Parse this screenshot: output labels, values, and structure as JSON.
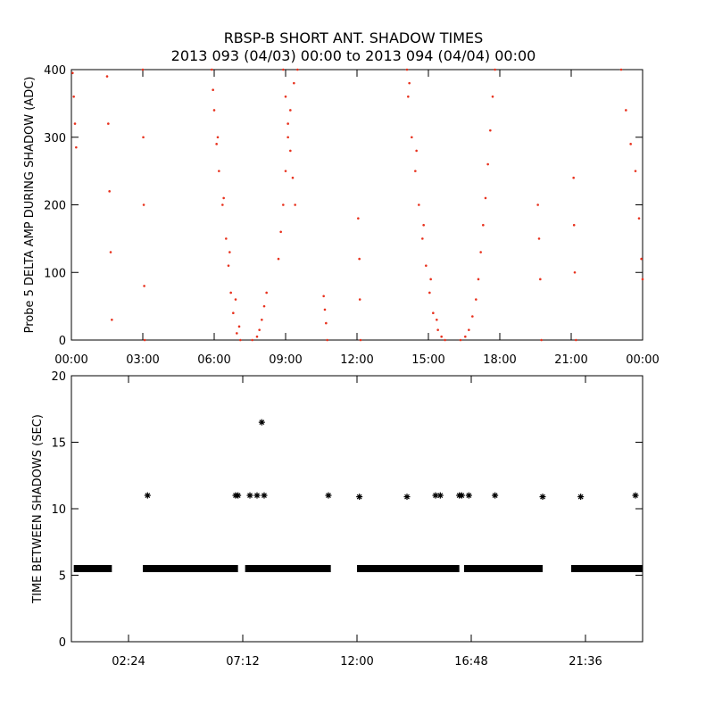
{
  "title": {
    "line1": "RBSP-B SHORT ANT. SHADOW TIMES",
    "line2": "2013 093 (04/03) 00:00 to 2013 094 (04/04) 00:00"
  },
  "chart_data": [
    {
      "type": "scatter",
      "ylabel": "Probe 5 DELTA AMP DURING SHADOW (ADC)",
      "xlabel": "",
      "xlim": [
        0,
        24
      ],
      "ylim": [
        0,
        400
      ],
      "x_ticks": [
        0,
        3,
        6,
        9,
        12,
        15,
        18,
        21,
        24
      ],
      "x_tick_labels": [
        "00:00",
        "03:00",
        "06:00",
        "09:00",
        "12:00",
        "15:00",
        "18:00",
        "21:00",
        "00:00"
      ],
      "y_ticks": [
        0,
        100,
        200,
        300,
        400
      ],
      "y_tick_labels": [
        "0",
        "100",
        "200",
        "300",
        "400"
      ],
      "color": "#e8321e",
      "grid": false,
      "series": [
        {
          "values": [
            [
              0.05,
              395
            ],
            [
              0.1,
              360
            ],
            [
              0.15,
              320
            ],
            [
              0.2,
              285
            ],
            [
              1.5,
              390
            ],
            [
              1.55,
              320
            ],
            [
              1.6,
              220
            ],
            [
              1.65,
              130
            ],
            [
              1.7,
              30
            ],
            [
              3.0,
              400
            ],
            [
              3.02,
              300
            ],
            [
              3.04,
              200
            ],
            [
              3.06,
              80
            ],
            [
              3.08,
              0
            ],
            [
              5.9,
              400
            ],
            [
              6.0,
              340
            ],
            [
              6.1,
              290
            ],
            [
              6.2,
              250
            ],
            [
              6.35,
              200
            ],
            [
              6.5,
              150
            ],
            [
              6.6,
              110
            ],
            [
              6.7,
              70
            ],
            [
              6.8,
              40
            ],
            [
              6.95,
              10
            ],
            [
              7.1,
              0
            ],
            [
              5.95,
              370
            ],
            [
              6.15,
              300
            ],
            [
              6.4,
              210
            ],
            [
              6.65,
              130
            ],
            [
              6.9,
              60
            ],
            [
              7.05,
              20
            ],
            [
              7.6,
              0
            ],
            [
              7.8,
              5
            ],
            [
              7.9,
              15
            ],
            [
              8.0,
              30
            ],
            [
              8.1,
              50
            ],
            [
              8.2,
              70
            ],
            [
              8.7,
              120
            ],
            [
              8.8,
              160
            ],
            [
              8.9,
              200
            ],
            [
              9.0,
              250
            ],
            [
              9.1,
              300
            ],
            [
              9.2,
              340
            ],
            [
              9.35,
              380
            ],
            [
              9.5,
              400
            ],
            [
              8.9,
              400
            ],
            [
              9.0,
              360
            ],
            [
              9.1,
              320
            ],
            [
              9.2,
              280
            ],
            [
              9.3,
              240
            ],
            [
              9.4,
              200
            ],
            [
              10.6,
              65
            ],
            [
              10.65,
              45
            ],
            [
              10.7,
              25
            ],
            [
              10.75,
              0
            ],
            [
              12.05,
              180
            ],
            [
              12.1,
              120
            ],
            [
              12.12,
              60
            ],
            [
              12.15,
              0
            ],
            [
              14.1,
              400
            ],
            [
              14.15,
              360
            ],
            [
              14.3,
              300
            ],
            [
              14.45,
              250
            ],
            [
              14.6,
              200
            ],
            [
              14.75,
              150
            ],
            [
              14.9,
              110
            ],
            [
              15.05,
              70
            ],
            [
              15.2,
              40
            ],
            [
              15.4,
              15
            ],
            [
              15.55,
              5
            ],
            [
              15.7,
              0
            ],
            [
              14.2,
              380
            ],
            [
              14.5,
              280
            ],
            [
              14.8,
              170
            ],
            [
              15.1,
              90
            ],
            [
              15.35,
              30
            ],
            [
              16.35,
              0
            ],
            [
              16.55,
              5
            ],
            [
              16.7,
              15
            ],
            [
              16.85,
              35
            ],
            [
              17.0,
              60
            ],
            [
              17.1,
              90
            ],
            [
              17.2,
              130
            ],
            [
              17.3,
              170
            ],
            [
              17.4,
              210
            ],
            [
              17.5,
              260
            ],
            [
              17.6,
              310
            ],
            [
              17.7,
              360
            ],
            [
              17.8,
              400
            ],
            [
              19.6,
              200
            ],
            [
              19.65,
              150
            ],
            [
              19.7,
              90
            ],
            [
              19.75,
              0
            ],
            [
              21.1,
              240
            ],
            [
              21.12,
              170
            ],
            [
              21.15,
              100
            ],
            [
              21.2,
              0
            ],
            [
              23.1,
              400
            ],
            [
              23.3,
              340
            ],
            [
              23.5,
              290
            ],
            [
              23.7,
              250
            ],
            [
              23.85,
              180
            ],
            [
              23.95,
              120
            ],
            [
              24.0,
              90
            ]
          ]
        }
      ]
    },
    {
      "type": "scatter",
      "ylabel": "TIME BETWEEN SHADOWS (SEC)",
      "xlabel": "",
      "xlim": [
        0,
        24
      ],
      "ylim": [
        0,
        20
      ],
      "x_ticks": [
        2.4,
        7.2,
        12,
        16.8,
        21.6
      ],
      "x_tick_labels": [
        "02:24",
        "07:12",
        "12:00",
        "16:48",
        "21:36"
      ],
      "y_ticks": [
        0,
        5,
        10,
        15,
        20
      ],
      "y_tick_labels": [
        "0",
        "5",
        "10",
        "15",
        "20"
      ],
      "marker": "asterisk",
      "color": "#000000",
      "grid": false,
      "band_value": 5.5,
      "bands": [
        [
          0.1,
          1.7
        ],
        [
          3.0,
          7.0
        ],
        [
          7.3,
          10.9
        ],
        [
          12.0,
          16.3
        ],
        [
          16.5,
          19.8
        ],
        [
          21.0,
          24.0
        ]
      ],
      "series": [
        {
          "values": [
            [
              3.2,
              11.0
            ],
            [
              6.9,
              11.0
            ],
            [
              7.0,
              11.0
            ],
            [
              7.5,
              11.0
            ],
            [
              7.8,
              11.0
            ],
            [
              8.1,
              11.0
            ],
            [
              8.0,
              16.5
            ],
            [
              10.8,
              11.0
            ],
            [
              12.1,
              10.9
            ],
            [
              14.1,
              10.9
            ],
            [
              15.3,
              11.0
            ],
            [
              15.5,
              11.0
            ],
            [
              16.3,
              11.0
            ],
            [
              16.4,
              11.0
            ],
            [
              16.7,
              11.0
            ],
            [
              17.8,
              11.0
            ],
            [
              19.8,
              10.9
            ],
            [
              21.4,
              10.9
            ],
            [
              23.7,
              11.0
            ]
          ]
        }
      ]
    }
  ]
}
